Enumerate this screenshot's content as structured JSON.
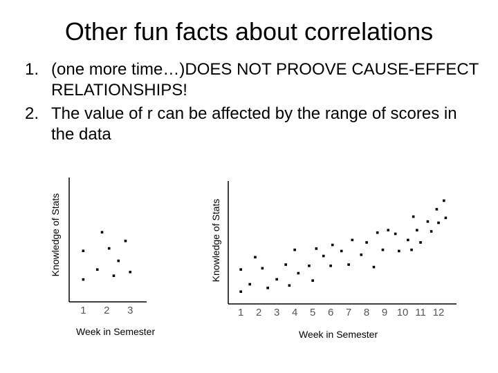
{
  "slide": {
    "title": "Other fun facts about correlations",
    "bullets": [
      {
        "number": "1.",
        "text": "(one more time…)DOES NOT PROOVE CAUSE-EFFECT RELATIONSHIPS!"
      },
      {
        "number": "2.",
        "text": "The value of r can be affected by the range of scores in the data"
      }
    ]
  },
  "chart_data": [
    {
      "type": "scatter",
      "xlabel": "Week in Semester",
      "ylabel": "Knowledge of Stats",
      "x_ticks": [
        "1",
        "2",
        "3"
      ],
      "xlim": [
        0.4,
        3.7
      ],
      "ylim": [
        0,
        1
      ],
      "points": [
        {
          "x": 1.0,
          "y": 0.41
        },
        {
          "x": 1.0,
          "y": 0.18
        },
        {
          "x": 1.8,
          "y": 0.56
        },
        {
          "x": 1.6,
          "y": 0.26
        },
        {
          "x": 2.1,
          "y": 0.43
        },
        {
          "x": 2.5,
          "y": 0.33
        },
        {
          "x": 2.3,
          "y": 0.21
        },
        {
          "x": 2.8,
          "y": 0.49
        },
        {
          "x": 3.0,
          "y": 0.24
        }
      ]
    },
    {
      "type": "scatter",
      "xlabel": "Week in Semester",
      "ylabel": "Knowledge of Stats",
      "x_ticks": [
        "1",
        "2",
        "3",
        "4",
        "5",
        "6",
        "7",
        "8",
        "9",
        "10",
        "11",
        "12"
      ],
      "xlim": [
        0.3,
        13.0
      ],
      "ylim": [
        0,
        1
      ],
      "points": [
        {
          "x": 1.0,
          "y": 0.1
        },
        {
          "x": 1.0,
          "y": 0.28
        },
        {
          "x": 1.5,
          "y": 0.16
        },
        {
          "x": 1.8,
          "y": 0.38
        },
        {
          "x": 2.2,
          "y": 0.29
        },
        {
          "x": 2.5,
          "y": 0.13
        },
        {
          "x": 3.0,
          "y": 0.2
        },
        {
          "x": 3.5,
          "y": 0.32
        },
        {
          "x": 3.7,
          "y": 0.15
        },
        {
          "x": 4.0,
          "y": 0.44
        },
        {
          "x": 4.2,
          "y": 0.25
        },
        {
          "x": 4.8,
          "y": 0.31
        },
        {
          "x": 5.0,
          "y": 0.19
        },
        {
          "x": 5.2,
          "y": 0.45
        },
        {
          "x": 5.6,
          "y": 0.39
        },
        {
          "x": 6.0,
          "y": 0.31
        },
        {
          "x": 6.1,
          "y": 0.48
        },
        {
          "x": 6.6,
          "y": 0.43
        },
        {
          "x": 7.0,
          "y": 0.32
        },
        {
          "x": 7.2,
          "y": 0.52
        },
        {
          "x": 7.7,
          "y": 0.4
        },
        {
          "x": 8.0,
          "y": 0.5
        },
        {
          "x": 8.4,
          "y": 0.3
        },
        {
          "x": 8.6,
          "y": 0.58
        },
        {
          "x": 8.9,
          "y": 0.44
        },
        {
          "x": 9.2,
          "y": 0.6
        },
        {
          "x": 9.6,
          "y": 0.57
        },
        {
          "x": 9.8,
          "y": 0.43
        },
        {
          "x": 10.3,
          "y": 0.52
        },
        {
          "x": 10.5,
          "y": 0.44
        },
        {
          "x": 10.6,
          "y": 0.71
        },
        {
          "x": 10.8,
          "y": 0.6
        },
        {
          "x": 11.0,
          "y": 0.5
        },
        {
          "x": 11.4,
          "y": 0.67
        },
        {
          "x": 11.6,
          "y": 0.59
        },
        {
          "x": 11.9,
          "y": 0.77
        },
        {
          "x": 12.0,
          "y": 0.66
        },
        {
          "x": 12.3,
          "y": 0.84
        },
        {
          "x": 12.4,
          "y": 0.7
        }
      ]
    }
  ]
}
